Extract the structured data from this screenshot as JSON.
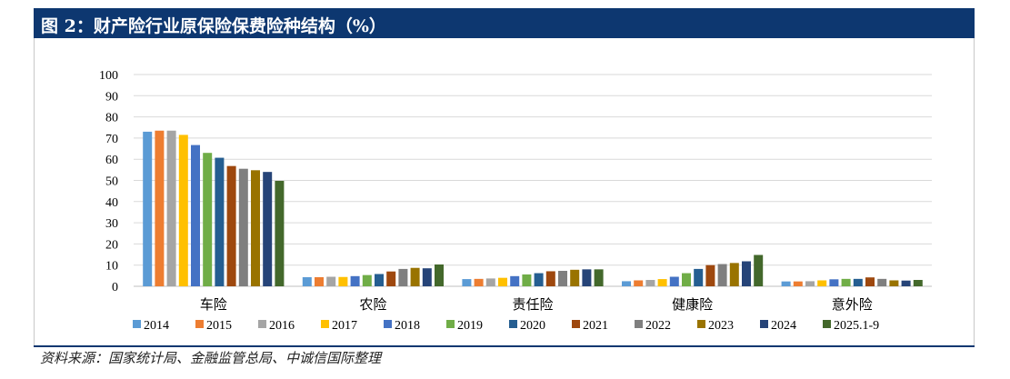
{
  "title": "图 2：财产险行业原保险保费险种结构（%）",
  "source": "资料来源：国家统计局、金融监管总局、中诚信国际整理",
  "chart_data": {
    "type": "bar",
    "categories": [
      "车险",
      "农险",
      "责任险",
      "健康险",
      "意外险"
    ],
    "ylim": [
      0,
      100
    ],
    "yticks": [
      0,
      10,
      20,
      30,
      40,
      50,
      60,
      70,
      80,
      90,
      100
    ],
    "grid": true,
    "legend_position": "bottom",
    "series": [
      {
        "name": "2014",
        "color": "#5b9bd5",
        "values": [
          73.0,
          4.3,
          3.4,
          2.4,
          2.3
        ]
      },
      {
        "name": "2015",
        "color": "#ed7d31",
        "values": [
          73.5,
          4.3,
          3.5,
          2.8,
          2.3
        ]
      },
      {
        "name": "2016",
        "color": "#a5a5a5",
        "values": [
          73.5,
          4.5,
          3.7,
          3.0,
          2.4
        ]
      },
      {
        "name": "2017",
        "color": "#ffc000",
        "values": [
          71.5,
          4.4,
          4.0,
          3.4,
          2.8
        ]
      },
      {
        "name": "2018",
        "color": "#4472c4",
        "values": [
          66.7,
          4.8,
          4.8,
          4.5,
          3.3
        ]
      },
      {
        "name": "2019",
        "color": "#70ad47",
        "values": [
          63.0,
          5.3,
          5.6,
          6.2,
          3.5
        ]
      },
      {
        "name": "2020",
        "color": "#255e91",
        "values": [
          60.7,
          5.8,
          6.2,
          8.2,
          3.5
        ]
      },
      {
        "name": "2021",
        "color": "#9e480e",
        "values": [
          56.8,
          7.0,
          7.1,
          10.0,
          4.2
        ]
      },
      {
        "name": "2022",
        "color": "#7f7f7f",
        "values": [
          55.5,
          8.2,
          7.3,
          10.5,
          3.5
        ]
      },
      {
        "name": "2023",
        "color": "#997300",
        "values": [
          54.8,
          8.7,
          7.8,
          11.0,
          2.8
        ]
      },
      {
        "name": "2024",
        "color": "#264478",
        "values": [
          54.0,
          8.5,
          8.0,
          11.8,
          2.7
        ]
      },
      {
        "name": "2025.1-9",
        "color": "#43682b",
        "values": [
          49.8,
          10.3,
          8.0,
          14.8,
          3.0
        ]
      }
    ]
  }
}
